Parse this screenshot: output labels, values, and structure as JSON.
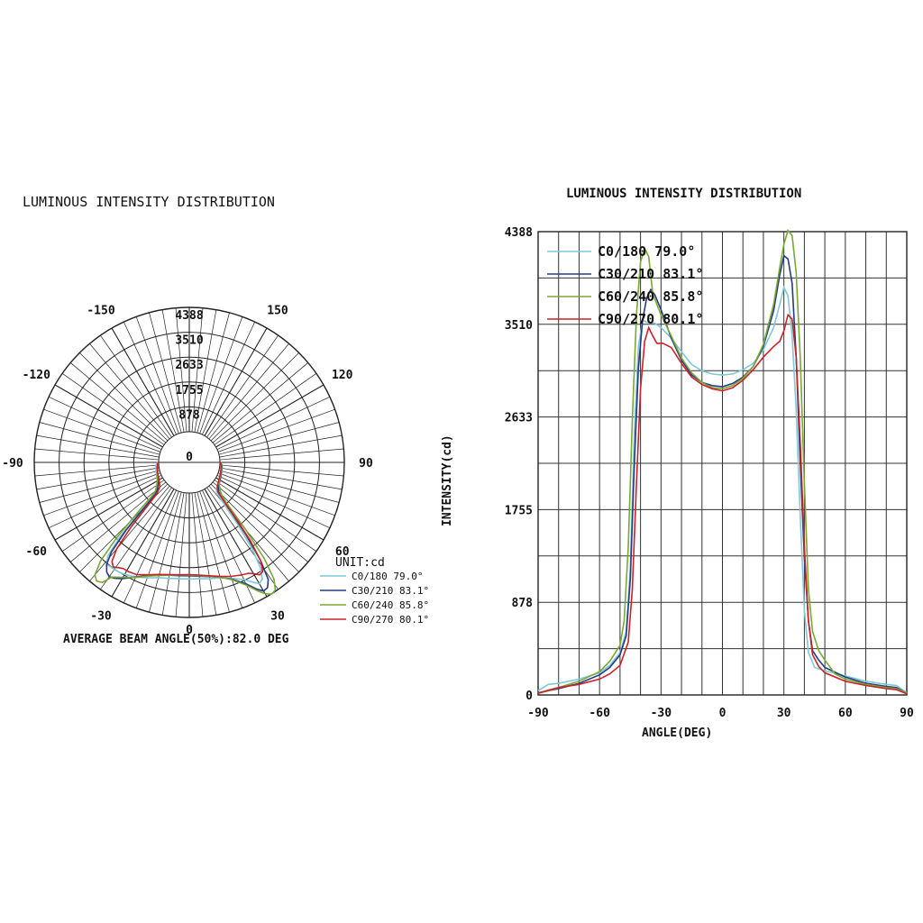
{
  "chart_data": [
    {
      "type": "polar-line",
      "title": "LUMINOUS INTENSITY DISTRIBUTION",
      "radial_ticks": [
        "0",
        "878",
        "1755",
        "2633",
        "3510",
        "4388"
      ],
      "radial_max": 4388,
      "angle_labels": [
        {
          "angle": 0,
          "label": "0"
        },
        {
          "angle": 30,
          "label": "30"
        },
        {
          "angle": -30,
          "label": "-30"
        },
        {
          "angle": 60,
          "label": "60"
        },
        {
          "angle": -60,
          "label": "-60"
        },
        {
          "angle": 90,
          "label": "90"
        },
        {
          "angle": -90,
          "label": "-90"
        },
        {
          "angle": 120,
          "label": "120"
        },
        {
          "angle": -120,
          "label": "-120"
        },
        {
          "angle": 150,
          "label": "150"
        },
        {
          "angle": -150,
          "label": "-150"
        }
      ],
      "unit_label": "UNIT:cd",
      "beam_note": "AVERAGE BEAM ANGLE(50%):82.0 DEG",
      "legend_placement": "bottom-right"
    },
    {
      "type": "line",
      "title": "LUMINOUS INTENSITY DISTRIBUTION",
      "xlabel": "ANGLE(DEG)",
      "ylabel": "INTENSITY(cd)",
      "xlim": [
        -90,
        90
      ],
      "ylim": [
        0,
        4388
      ],
      "xticks": [
        "-90",
        "-60",
        "-30",
        "0",
        "30",
        "60",
        "90"
      ],
      "yticks": [
        "0",
        "878",
        "1755",
        "2633",
        "3510",
        "4388"
      ],
      "grid": true,
      "legend_placement": "top-left"
    }
  ],
  "series": [
    {
      "name": "C0/180",
      "beam": "79.0°",
      "color": "#7ec8d8",
      "points": [
        [
          -90,
          40
        ],
        [
          -85,
          100
        ],
        [
          -80,
          110
        ],
        [
          -70,
          150
        ],
        [
          -60,
          210
        ],
        [
          -55,
          280
        ],
        [
          -50,
          400
        ],
        [
          -47,
          600
        ],
        [
          -45,
          1200
        ],
        [
          -43,
          2500
        ],
        [
          -41,
          3300
        ],
        [
          -39,
          3550
        ],
        [
          -37,
          3530
        ],
        [
          -33,
          3520
        ],
        [
          -30,
          3480
        ],
        [
          -25,
          3380
        ],
        [
          -20,
          3250
        ],
        [
          -15,
          3130
        ],
        [
          -10,
          3070
        ],
        [
          -5,
          3040
        ],
        [
          0,
          3030
        ],
        [
          5,
          3040
        ],
        [
          10,
          3080
        ],
        [
          15,
          3140
        ],
        [
          20,
          3270
        ],
        [
          25,
          3480
        ],
        [
          28,
          3700
        ],
        [
          30,
          3860
        ],
        [
          32,
          3780
        ],
        [
          34,
          3400
        ],
        [
          36,
          2700
        ],
        [
          38,
          1700
        ],
        [
          40,
          800
        ],
        [
          42,
          400
        ],
        [
          45,
          260
        ],
        [
          50,
          230
        ],
        [
          60,
          180
        ],
        [
          70,
          130
        ],
        [
          80,
          100
        ],
        [
          85,
          90
        ],
        [
          90,
          20
        ]
      ]
    },
    {
      "name": "C30/210",
      "beam": "83.1°",
      "color": "#243b80",
      "points": [
        [
          -90,
          20
        ],
        [
          -85,
          40
        ],
        [
          -80,
          60
        ],
        [
          -70,
          110
        ],
        [
          -60,
          190
        ],
        [
          -55,
          260
        ],
        [
          -50,
          380
        ],
        [
          -47,
          560
        ],
        [
          -45,
          1100
        ],
        [
          -43,
          2200
        ],
        [
          -41,
          3100
        ],
        [
          -39,
          3550
        ],
        [
          -37,
          3760
        ],
        [
          -35,
          3840
        ],
        [
          -33,
          3790
        ],
        [
          -30,
          3650
        ],
        [
          -25,
          3380
        ],
        [
          -20,
          3170
        ],
        [
          -15,
          3030
        ],
        [
          -10,
          2960
        ],
        [
          -5,
          2930
        ],
        [
          0,
          2920
        ],
        [
          5,
          2950
        ],
        [
          10,
          3010
        ],
        [
          15,
          3110
        ],
        [
          20,
          3300
        ],
        [
          25,
          3640
        ],
        [
          28,
          3980
        ],
        [
          30,
          4160
        ],
        [
          32,
          4130
        ],
        [
          34,
          3900
        ],
        [
          36,
          3200
        ],
        [
          38,
          2200
        ],
        [
          40,
          1300
        ],
        [
          42,
          700
        ],
        [
          44,
          420
        ],
        [
          47,
          330
        ],
        [
          50,
          260
        ],
        [
          60,
          170
        ],
        [
          70,
          110
        ],
        [
          80,
          80
        ],
        [
          85,
          70
        ],
        [
          90,
          15
        ]
      ]
    },
    {
      "name": "C60/240",
      "beam": "85.8°",
      "color": "#7aa834",
      "points": [
        [
          -90,
          15
        ],
        [
          -85,
          40
        ],
        [
          -80,
          70
        ],
        [
          -70,
          130
        ],
        [
          -60,
          220
        ],
        [
          -55,
          320
        ],
        [
          -50,
          470
        ],
        [
          -48,
          700
        ],
        [
          -46,
          1400
        ],
        [
          -44,
          2600
        ],
        [
          -42,
          3600
        ],
        [
          -40,
          4100
        ],
        [
          -38,
          4230
        ],
        [
          -36,
          4150
        ],
        [
          -34,
          3800
        ],
        [
          -30,
          3600
        ],
        [
          -25,
          3400
        ],
        [
          -20,
          3190
        ],
        [
          -15,
          3050
        ],
        [
          -10,
          2960
        ],
        [
          -5,
          2910
        ],
        [
          0,
          2900
        ],
        [
          5,
          2930
        ],
        [
          10,
          3000
        ],
        [
          15,
          3110
        ],
        [
          20,
          3320
        ],
        [
          25,
          3700
        ],
        [
          28,
          4050
        ],
        [
          30,
          4270
        ],
        [
          32,
          4400
        ],
        [
          34,
          4350
        ],
        [
          36,
          4000
        ],
        [
          38,
          3200
        ],
        [
          40,
          2000
        ],
        [
          42,
          1000
        ],
        [
          44,
          600
        ],
        [
          47,
          420
        ],
        [
          50,
          330
        ],
        [
          55,
          200
        ],
        [
          60,
          150
        ],
        [
          70,
          100
        ],
        [
          80,
          70
        ],
        [
          85,
          60
        ],
        [
          90,
          20
        ]
      ]
    },
    {
      "name": "C90/270",
      "beam": "80.1°",
      "color": "#cc2128",
      "points": [
        [
          -90,
          15
        ],
        [
          -85,
          45
        ],
        [
          -80,
          70
        ],
        [
          -70,
          100
        ],
        [
          -60,
          150
        ],
        [
          -55,
          200
        ],
        [
          -50,
          280
        ],
        [
          -46,
          500
        ],
        [
          -44,
          1000
        ],
        [
          -42,
          2000
        ],
        [
          -40,
          2900
        ],
        [
          -38,
          3350
        ],
        [
          -36,
          3480
        ],
        [
          -34,
          3400
        ],
        [
          -32,
          3330
        ],
        [
          -29,
          3330
        ],
        [
          -25,
          3290
        ],
        [
          -20,
          3140
        ],
        [
          -15,
          3010
        ],
        [
          -10,
          2940
        ],
        [
          -5,
          2900
        ],
        [
          0,
          2880
        ],
        [
          5,
          2910
        ],
        [
          10,
          2980
        ],
        [
          15,
          3080
        ],
        [
          20,
          3200
        ],
        [
          25,
          3300
        ],
        [
          28,
          3350
        ],
        [
          30,
          3450
        ],
        [
          32,
          3600
        ],
        [
          34,
          3560
        ],
        [
          36,
          3200
        ],
        [
          38,
          2400
        ],
        [
          40,
          1400
        ],
        [
          42,
          700
        ],
        [
          44,
          380
        ],
        [
          47,
          270
        ],
        [
          50,
          210
        ],
        [
          60,
          130
        ],
        [
          70,
          90
        ],
        [
          80,
          60
        ],
        [
          85,
          50
        ],
        [
          90,
          10
        ]
      ]
    }
  ]
}
